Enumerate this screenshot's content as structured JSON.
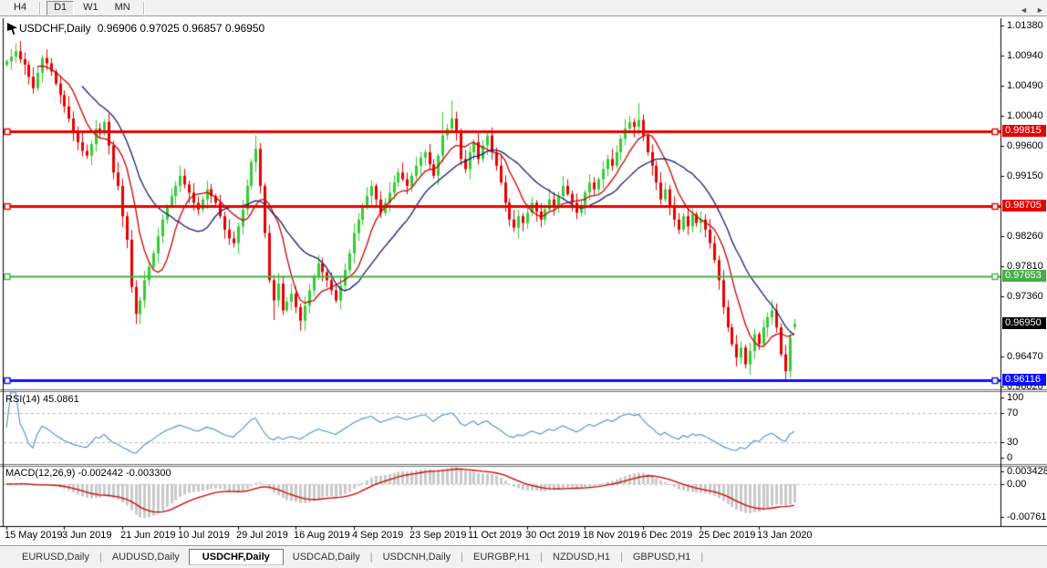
{
  "toolbar": {
    "buttons": [
      {
        "label": "H4",
        "active": false
      },
      {
        "label": "D1",
        "active": true
      },
      {
        "label": "W1",
        "active": false
      },
      {
        "label": "MN",
        "active": false
      }
    ]
  },
  "chart_header": {
    "title": "USDCHF,Daily",
    "ohlc": "0.96906 0.97025 0.96857 0.96950"
  },
  "chart_data": {
    "type": "candlestick",
    "symbol": "USDCHF",
    "timeframe": "Daily",
    "current_bar": {
      "open": 0.96906,
      "high": 0.97025,
      "low": 0.96857,
      "close": 0.9695
    },
    "ylim": [
      0.9598,
      1.0149
    ],
    "y_axis_ticks": [
      "1.01380",
      "1.00940",
      "1.00490",
      "1.00040",
      "0.99600",
      "0.99150",
      "0.98260",
      "0.97810",
      "0.97360",
      "0.96470",
      "0.96020"
    ],
    "x_labels": [
      "15 May 2019",
      "3 Jun 2019",
      "21 Jun 2019",
      "10 Jul 2019",
      "29 Jul 2019",
      "16 Aug 2019",
      "4 Sep 2019",
      "23 Sep 2019",
      "11 Oct 2019",
      "30 Oct 2019",
      "18 Nov 2019",
      "6 Dec 2019",
      "25 Dec 2019",
      "13 Jan 2020"
    ],
    "bars_per_x_label": 13,
    "horizontal_lines": [
      {
        "price": 0.99815,
        "label": "0.99815",
        "color": "#e60000",
        "thickness": 3
      },
      {
        "price": 0.98705,
        "label": "0.98705",
        "color": "#e60000",
        "thickness": 3
      },
      {
        "price": 0.97653,
        "label": "0.97653",
        "color": "#44b044",
        "thickness": 2
      },
      {
        "price": 0.96116,
        "label": "0.96116",
        "color": "#0d0dff",
        "thickness": 3
      }
    ],
    "current_price_badge": {
      "price": 0.9695,
      "label": "0.96950",
      "bg": "#000000"
    },
    "candles": {
      "up_color": "#32cd32",
      "down_color": "#e60000",
      "first_open": 1.008,
      "closes": [
        1.0085,
        1.0092,
        1.01,
        1.0088,
        1.008,
        1.0062,
        1.0045,
        1.0068,
        1.009,
        1.0082,
        1.007,
        1.0052,
        1.0035,
        1.0018,
        1.0,
        0.9982,
        0.9965,
        0.9952,
        0.9945,
        0.9962,
        0.9985,
        0.9978,
        0.9995,
        0.996,
        0.992,
        0.99,
        0.9855,
        0.982,
        0.975,
        0.971,
        0.973,
        0.976,
        0.978,
        0.98,
        0.9825,
        0.985,
        0.987,
        0.9885,
        0.99,
        0.9915,
        0.9902,
        0.989,
        0.9875,
        0.9865,
        0.988,
        0.9895,
        0.9885,
        0.9875,
        0.9855,
        0.9835,
        0.9822,
        0.9815,
        0.984,
        0.9865,
        0.99,
        0.9935,
        0.9955,
        0.99,
        0.983,
        0.976,
        0.973,
        0.9755,
        0.9715,
        0.9728,
        0.974,
        0.972,
        0.97,
        0.9722,
        0.9745,
        0.9765,
        0.9785,
        0.9772,
        0.976,
        0.9745,
        0.973,
        0.9752,
        0.9775,
        0.98,
        0.983,
        0.985,
        0.987,
        0.9885,
        0.99,
        0.988,
        0.986,
        0.9875,
        0.989,
        0.9905,
        0.992,
        0.991,
        0.99,
        0.9915,
        0.993,
        0.9942,
        0.995,
        0.9932,
        0.9915,
        0.9945,
        0.9975,
        0.9985,
        1.0,
        0.998,
        0.994,
        0.9925,
        0.995,
        0.9965,
        0.994,
        0.996,
        0.9975,
        0.995,
        0.993,
        0.9905,
        0.9875,
        0.985,
        0.9838,
        0.9855,
        0.9845,
        0.986,
        0.9875,
        0.9862,
        0.985,
        0.9865,
        0.988,
        0.987,
        0.9885,
        0.99,
        0.9888,
        0.9875,
        0.986,
        0.9872,
        0.989,
        0.9905,
        0.9895,
        0.991,
        0.9925,
        0.994,
        0.993,
        0.995,
        0.997,
        0.9985,
        0.9995,
        0.9988,
        0.9998,
        0.9975,
        0.995,
        0.993,
        0.9905,
        0.988,
        0.9895,
        0.987,
        0.985,
        0.9835,
        0.9855,
        0.984,
        0.9858,
        0.9845,
        0.985,
        0.9835,
        0.9815,
        0.979,
        0.976,
        0.972,
        0.969,
        0.9665,
        0.9645,
        0.966,
        0.9635,
        0.9655,
        0.968,
        0.9665,
        0.969,
        0.9705,
        0.9715,
        0.969,
        0.965,
        0.9625,
        0.9675,
        0.9695
      ],
      "extremes": {
        "2": {
          "h": 1.0112
        },
        "29": {
          "l": 0.9695
        },
        "56": {
          "h": 0.9975
        },
        "60": {
          "l": 0.9701
        },
        "66": {
          "l": 0.9685
        },
        "98": {
          "h": 1.001
        },
        "100": {
          "h": 1.0027
        },
        "142": {
          "h": 1.0023
        },
        "175": {
          "l": 0.9613
        },
        "177": {
          "o": 0.96906,
          "h": 0.97025,
          "l": 0.96857,
          "c": 0.9695
        }
      }
    },
    "moving_averages": [
      {
        "name": "ma-fast",
        "period": 8,
        "color": "#cc0000"
      },
      {
        "name": "ma-slow",
        "period": 18,
        "color": "#1c1c70"
      }
    ],
    "rsi": {
      "label": "RSI(14) 45.0861",
      "period": 14,
      "value": 45.0861,
      "axis_ticks": [
        "100",
        "70",
        "30",
        "0"
      ],
      "dashed_levels": [
        70,
        30
      ],
      "color": "#4d8fcc"
    },
    "macd": {
      "label": "MACD(12,26,9) -0.002442 -0.003300",
      "fast": 12,
      "slow": 26,
      "signal": 9,
      "value": -0.002442,
      "signal_value": -0.0033,
      "axis_ticks": [
        "0.003428",
        "0.00",
        "-0.007615"
      ],
      "histogram_color": "#c9c9c9",
      "signal_color": "#cc0000"
    }
  },
  "tabs": {
    "items": [
      {
        "label": "EURUSD,Daily",
        "active": false
      },
      {
        "label": "AUDUSD,Daily",
        "active": false
      },
      {
        "label": "USDCHF,Daily",
        "active": true
      },
      {
        "label": "USDCAD,Daily",
        "active": false
      },
      {
        "label": "USDCNH,Daily",
        "active": false
      },
      {
        "label": "EURGBP,H1",
        "active": false
      },
      {
        "label": "NZDUSD,H1",
        "active": false
      },
      {
        "label": "GBPUSD,H1",
        "active": false
      }
    ],
    "scroll_left_icon": "◄",
    "scroll_right_icon": "►"
  }
}
